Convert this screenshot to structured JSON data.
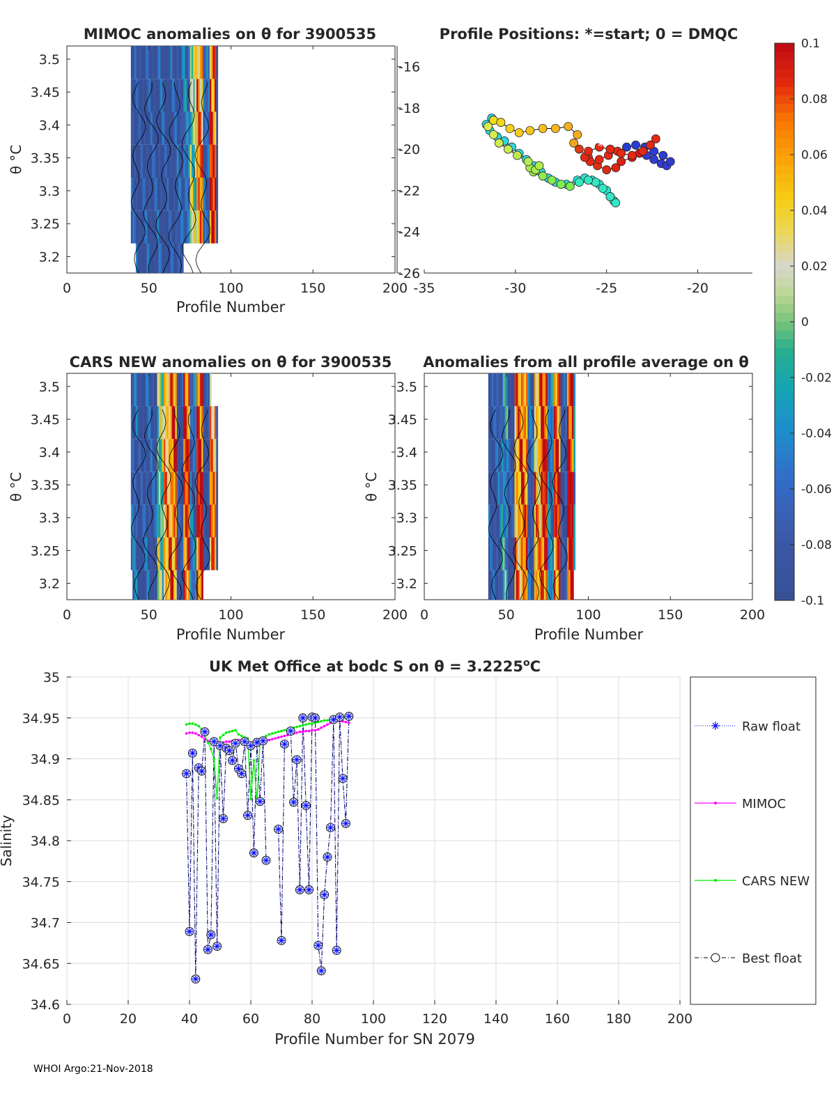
{
  "footer": "WHOI Argo:21-Nov-2018",
  "colorbar": {
    "min": -0.1,
    "max": 0.1,
    "tick_labels": [
      "0.1",
      "0.08",
      "0.06",
      "0.04",
      "0.02",
      "0",
      "-0.02",
      "-0.04",
      "-0.06",
      "-0.08",
      "-0.1"
    ],
    "tick_values": [
      0.1,
      0.08,
      0.06,
      0.04,
      0.02,
      0,
      -0.02,
      -0.04,
      -0.06,
      -0.08,
      -0.1
    ]
  },
  "chart_data": [
    {
      "id": "mimoc",
      "type": "heatmap",
      "title": "MIMOC anomalies on θ  for 3900535",
      "xlabel": "Profile Number",
      "ylabel": "θ °C",
      "xlim": [
        0,
        200
      ],
      "ylim": [
        3.175,
        3.52
      ],
      "xticks": [
        0,
        50,
        100,
        150,
        200
      ],
      "yticks": [
        3.2,
        3.25,
        3.3,
        3.35,
        3.4,
        3.45,
        3.5
      ],
      "bands": [
        {
          "y0": 3.175,
          "y1": 3.22,
          "x0": 42,
          "x1": 71
        },
        {
          "y0": 3.22,
          "y1": 3.27,
          "x0": 39,
          "x1": 92
        },
        {
          "y0": 3.27,
          "y1": 3.32,
          "x0": 39,
          "x1": 92
        },
        {
          "y0": 3.32,
          "y1": 3.37,
          "x0": 39,
          "x1": 92
        },
        {
          "y0": 3.37,
          "y1": 3.42,
          "x0": 39,
          "x1": 92
        },
        {
          "y0": 3.42,
          "y1": 3.47,
          "x0": 39,
          "x1": 92
        },
        {
          "y0": 3.47,
          "y1": 3.52,
          "x0": 39,
          "x1": 92
        }
      ],
      "profile_anomalies": {
        "x": [
          40,
          44,
          48,
          52,
          56,
          60,
          64,
          68,
          72,
          76,
          80,
          84,
          88,
          92
        ],
        "values": [
          -0.09,
          -0.1,
          -0.09,
          -0.095,
          -0.085,
          -0.1,
          -0.09,
          -0.08,
          -0.06,
          0.01,
          0.06,
          -0.07,
          0.08,
          -0.1
        ]
      }
    },
    {
      "id": "positions",
      "type": "scatter",
      "title": "Profile Positions: *=start; 0 = DMQC",
      "xlim": [
        -35,
        -17
      ],
      "ylim": [
        -26,
        -15
      ],
      "xticks": [
        -35,
        -30,
        -25,
        -20
      ],
      "yticks": [
        -16,
        -18,
        -20,
        -22,
        -24,
        -26
      ],
      "lon": [
        -31.3,
        -31.6,
        -31.4,
        -31.0,
        -30.6,
        -30.2,
        -29.8,
        -29.4,
        -29.0,
        -28.6,
        -28.2,
        -27.8,
        -27.2,
        -26.6,
        -26.2,
        -25.8,
        -25.4,
        -25.0,
        -24.8,
        -24.6,
        -24.5,
        -24.8,
        -25.2,
        -25.6,
        -26.0,
        -26.5,
        -27.0,
        -27.5,
        -28.0,
        -28.5,
        -29.0,
        -29.2,
        -28.9,
        -28.7,
        -29.3,
        -29.9,
        -30.4,
        -30.9,
        -31.2,
        -31.5,
        -31.2,
        -30.8,
        -30.3,
        -29.8,
        -29.2,
        -28.5,
        -27.8,
        -27.1,
        -26.6,
        -26.8,
        -26.5,
        -26.0,
        -25.5,
        -25.0,
        -24.5,
        -24.2,
        -23.6,
        -23.2,
        -22.8,
        -22.4,
        -22.0,
        -21.7,
        -21.5,
        -21.9,
        -22.4,
        -22.9,
        -23.4,
        -23.9,
        -24.4,
        -24.9,
        -25.4,
        -25.9,
        -26.2,
        -26.0,
        -25.4,
        -24.8,
        -24.2,
        -23.6,
        -23.0,
        -22.6,
        -22.3
      ],
      "lat": [
        -18.5,
        -18.8,
        -19.1,
        -19.4,
        -19.6,
        -19.9,
        -20.2,
        -20.5,
        -20.8,
        -21.1,
        -21.4,
        -21.6,
        -21.7,
        -21.5,
        -21.4,
        -21.5,
        -21.7,
        -22.0,
        -22.3,
        -22.5,
        -22.6,
        -22.3,
        -21.9,
        -21.6,
        -21.5,
        -21.6,
        -21.8,
        -21.7,
        -21.5,
        -21.3,
        -21.1,
        -20.9,
        -21.0,
        -20.8,
        -20.6,
        -20.3,
        -20.0,
        -19.7,
        -19.3,
        -18.9,
        -18.6,
        -18.7,
        -19.0,
        -19.2,
        -19.1,
        -19.0,
        -19.0,
        -18.9,
        -19.3,
        -19.7,
        -20.0,
        -20.4,
        -20.8,
        -21.0,
        -20.9,
        -20.6,
        -20.4,
        -20.2,
        -20.3,
        -20.5,
        -20.7,
        -20.8,
        -20.6,
        -20.3,
        -20.1,
        -19.9,
        -19.8,
        -19.9,
        -20.1,
        -20.3,
        -20.5,
        -20.6,
        -20.4,
        -20.1,
        -19.9,
        -20.0,
        -20.2,
        -20.3,
        -20.1,
        -19.8,
        -19.5
      ],
      "start": {
        "lon": -25.3,
        "lat": -19.7
      }
    },
    {
      "id": "cars",
      "type": "heatmap",
      "title": "CARS NEW anomalies on θ for 3900535",
      "xlabel": "Profile Number",
      "ylabel": "θ °C",
      "xlim": [
        0,
        200
      ],
      "ylim": [
        3.175,
        3.52
      ],
      "xticks": [
        0,
        50,
        100,
        150,
        200
      ],
      "yticks": [
        3.2,
        3.25,
        3.3,
        3.35,
        3.4,
        3.45,
        3.5
      ],
      "bands": [
        {
          "y0": 3.175,
          "y1": 3.22,
          "x0": 40,
          "x1": 83
        },
        {
          "y0": 3.22,
          "y1": 3.27,
          "x0": 39,
          "x1": 92
        },
        {
          "y0": 3.27,
          "y1": 3.32,
          "x0": 39,
          "x1": 92
        },
        {
          "y0": 3.32,
          "y1": 3.37,
          "x0": 39,
          "x1": 92
        },
        {
          "y0": 3.37,
          "y1": 3.42,
          "x0": 39,
          "x1": 92
        },
        {
          "y0": 3.42,
          "y1": 3.47,
          "x0": 39,
          "x1": 92
        },
        {
          "y0": 3.47,
          "y1": 3.52,
          "x0": 39,
          "x1": 88
        }
      ],
      "profile_anomalies": {
        "x": [
          40,
          44,
          48,
          52,
          56,
          60,
          64,
          68,
          72,
          76,
          80,
          84,
          88,
          92
        ],
        "values": [
          -0.07,
          -0.1,
          -0.08,
          -0.09,
          0.0,
          0.05,
          0.07,
          -0.1,
          0.08,
          -0.06,
          0.09,
          -0.1,
          0.06,
          -0.09
        ]
      }
    },
    {
      "id": "allavg",
      "type": "heatmap",
      "title": "Anomalies from all profile average on θ",
      "xlabel": "Profile Number",
      "ylabel": "θ °C",
      "xlim": [
        0,
        200
      ],
      "ylim": [
        3.175,
        3.52
      ],
      "xticks": [
        0,
        50,
        100,
        150,
        200
      ],
      "yticks": [
        3.2,
        3.25,
        3.3,
        3.35,
        3.4,
        3.45,
        3.5
      ],
      "bands": [
        {
          "y0": 3.175,
          "y1": 3.22,
          "x0": 39,
          "x1": 91
        },
        {
          "y0": 3.22,
          "y1": 3.27,
          "x0": 39,
          "x1": 92
        },
        {
          "y0": 3.27,
          "y1": 3.32,
          "x0": 39,
          "x1": 92
        },
        {
          "y0": 3.32,
          "y1": 3.37,
          "x0": 39,
          "x1": 92
        },
        {
          "y0": 3.37,
          "y1": 3.42,
          "x0": 39,
          "x1": 92
        },
        {
          "y0": 3.42,
          "y1": 3.47,
          "x0": 39,
          "x1": 92
        },
        {
          "y0": 3.47,
          "y1": 3.52,
          "x0": 39,
          "x1": 92
        }
      ],
      "profile_anomalies": {
        "x": [
          40,
          44,
          48,
          52,
          56,
          60,
          64,
          68,
          72,
          76,
          80,
          84,
          88,
          92
        ],
        "values": [
          -0.09,
          -0.08,
          -0.04,
          -0.1,
          0.06,
          0.07,
          -0.08,
          0.05,
          0.09,
          -0.05,
          0.08,
          -0.09,
          0.1,
          -0.03
        ]
      }
    },
    {
      "id": "salinity",
      "type": "line",
      "title_prefix": "UK Met Office at bodc S on θ = 3.2225",
      "title_sup": "o",
      "title_suffix": "C",
      "xlabel": "Profile Number for SN 2079",
      "ylabel": "Salinity",
      "xlim": [
        0,
        200
      ],
      "ylim": [
        34.6,
        35
      ],
      "xticks": [
        0,
        20,
        40,
        60,
        80,
        100,
        120,
        140,
        160,
        180,
        200
      ],
      "yticks": [
        34.6,
        34.65,
        34.7,
        34.75,
        34.8,
        34.85,
        34.9,
        34.95,
        35
      ],
      "ytick_labels": [
        "34.6",
        "34.65",
        "34.7",
        "34.75",
        "34.8",
        "34.85",
        "34.9",
        "34.95",
        "35"
      ],
      "x": [
        39,
        40,
        41,
        42,
        43,
        44,
        45,
        46,
        47,
        48,
        49,
        50,
        51,
        52,
        53,
        54,
        55,
        56,
        57,
        58,
        59,
        60,
        61,
        62,
        63,
        64,
        65,
        66,
        67,
        68,
        69,
        70,
        71,
        72,
        73,
        74,
        75,
        76,
        77,
        78,
        79,
        80,
        81,
        82,
        83,
        84,
        85,
        86,
        87,
        88,
        89,
        90,
        91,
        92
      ],
      "series": [
        {
          "name": "Raw float",
          "color": "#0000ff",
          "values": [
            34.882,
            34.689,
            34.907,
            34.631,
            34.889,
            34.885,
            34.933,
            34.667,
            34.685,
            34.921,
            34.671,
            34.916,
            34.827,
            34.913,
            34.91,
            34.898,
            34.919,
            34.888,
            34.882,
            34.921,
            34.831,
            34.916,
            34.785,
            34.92,
            34.848,
            34.922,
            34.776,
            null,
            null,
            null,
            34.814,
            34.678,
            34.918,
            null,
            34.934,
            34.847,
            34.899,
            34.74,
            34.95,
            34.843,
            34.74,
            34.951,
            34.95,
            34.672,
            34.641,
            34.734,
            34.78,
            34.816,
            34.948,
            34.666,
            34.951,
            34.876,
            34.821,
            34.952
          ]
        },
        {
          "name": "MIMOC",
          "color": "#ff00ff",
          "values": [
            34.931,
            34.932,
            34.932,
            34.931,
            34.929,
            34.927,
            34.924,
            34.922,
            34.92,
            34.919,
            34.918,
            34.919,
            34.92,
            34.921,
            34.921,
            34.922,
            34.922,
            34.923,
            34.923,
            34.921,
            34.918,
            34.917,
            34.917,
            34.918,
            34.919,
            34.921,
            34.922,
            34.923,
            34.924,
            34.925,
            34.926,
            34.927,
            34.928,
            34.929,
            34.93,
            34.931,
            34.932,
            34.933,
            34.933,
            34.934,
            34.934,
            34.935,
            34.935,
            34.936,
            34.938,
            34.94,
            34.942,
            34.944,
            34.945,
            34.946,
            34.946,
            34.946,
            34.945,
            34.944
          ]
        },
        {
          "name": "CARS NEW",
          "color": "#00ee00",
          "values": [
            34.942,
            34.943,
            34.943,
            34.942,
            34.94,
            34.936,
            34.929,
            34.92,
            34.912,
            34.9,
            34.852,
            34.926,
            34.929,
            34.932,
            34.933,
            34.934,
            34.935,
            34.93,
            34.928,
            34.926,
            34.925,
            34.851,
            34.898,
            34.848,
            34.92,
            34.925,
            34.928,
            34.93,
            34.931,
            34.932,
            34.933,
            34.934,
            34.935,
            34.936,
            34.937,
            34.938,
            34.939,
            34.94,
            34.941,
            34.942,
            34.943,
            34.943,
            34.944,
            34.945,
            34.946,
            34.947,
            34.947,
            34.948,
            34.948,
            34.949,
            34.949,
            34.95,
            34.95,
            34.951
          ]
        },
        {
          "name": "Best float",
          "color": "#000000",
          "values": [
            34.882,
            34.689,
            34.907,
            34.631,
            34.889,
            34.885,
            34.933,
            34.667,
            34.685,
            34.921,
            34.671,
            34.916,
            34.827,
            34.913,
            34.91,
            34.898,
            34.919,
            34.888,
            34.882,
            34.921,
            34.831,
            34.916,
            34.785,
            34.92,
            34.848,
            34.922,
            34.776,
            null,
            null,
            null,
            34.814,
            34.678,
            34.918,
            null,
            34.934,
            34.847,
            34.899,
            34.74,
            34.95,
            34.843,
            34.74,
            34.951,
            34.95,
            34.672,
            34.641,
            34.734,
            34.78,
            34.816,
            34.948,
            34.666,
            34.951,
            34.876,
            34.821,
            34.952
          ]
        }
      ],
      "legend": [
        "Raw float",
        "MIMOC",
        "CARS NEW",
        "Best float"
      ]
    }
  ]
}
